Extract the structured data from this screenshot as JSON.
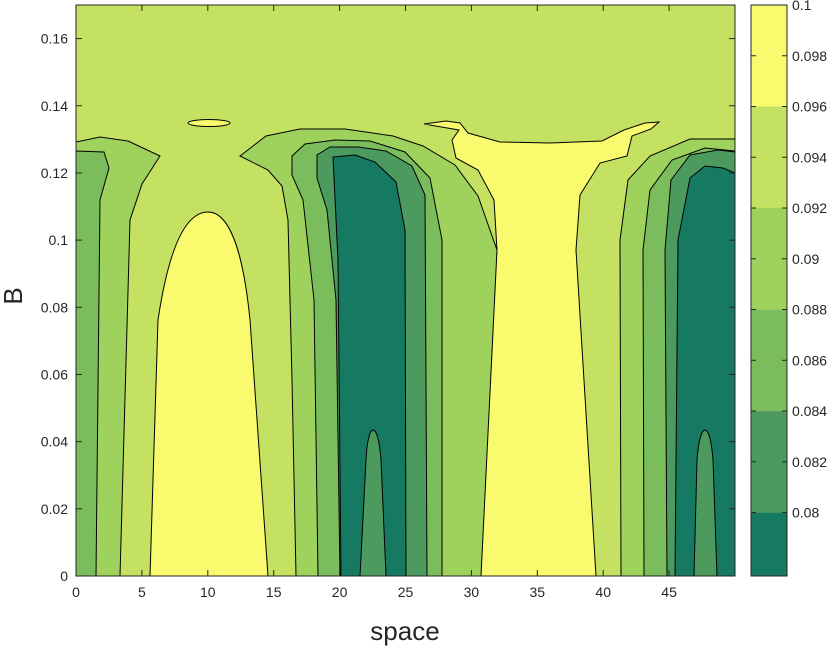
{
  "chart_data": {
    "type": "contour",
    "xlabel": "space",
    "ylabel": "B",
    "xlim": [
      0,
      50
    ],
    "ylim": [
      0,
      0.17
    ],
    "x_ticks": [
      "0",
      "5",
      "10",
      "15",
      "20",
      "25",
      "30",
      "35",
      "40",
      "45"
    ],
    "y_ticks": [
      "0",
      "0.02",
      "0.04",
      "0.06",
      "0.08",
      "0.1",
      "0.12",
      "0.14",
      "0.16"
    ],
    "colorbar": {
      "range": [
        0.0775,
        0.1
      ],
      "ticks": [
        "0.08",
        "0.082",
        "0.084",
        "0.086",
        "0.088",
        "0.09",
        "0.092",
        "0.094",
        "0.096",
        "0.098",
        "0.1"
      ]
    },
    "contour_levels": [
      0.08,
      0.084,
      0.088,
      0.092,
      0.096
    ],
    "levels": [
      {
        "level": 0.096,
        "color": "#fafa6e"
      },
      {
        "level": 0.092,
        "color": "#c4e161"
      },
      {
        "level": 0.088,
        "color": "#9fd25d"
      },
      {
        "level": 0.084,
        "color": "#7bbd5c"
      },
      {
        "level": 0.08,
        "color": "#4d9a5f"
      },
      {
        "level": 0.0775,
        "color": "#167a62"
      }
    ],
    "regions": [
      {
        "name": "left-band",
        "x": [
          0,
          6
        ],
        "min_value": 0.084
      },
      {
        "name": "yellow-peak-1",
        "x": [
          6,
          15
        ],
        "peak_value": 0.1,
        "top_B": 0.108
      },
      {
        "name": "dark-valley-1",
        "x": [
          17,
          27
        ],
        "min_value": 0.0775
      },
      {
        "name": "yellow-peak-2",
        "x": [
          29,
          39
        ],
        "peak_value": 0.1,
        "top_B": 0.135
      },
      {
        "name": "dark-valley-2",
        "x": [
          42,
          50
        ],
        "min_value": 0.0775
      }
    ],
    "grid": false,
    "legend": "colorbar-right"
  }
}
